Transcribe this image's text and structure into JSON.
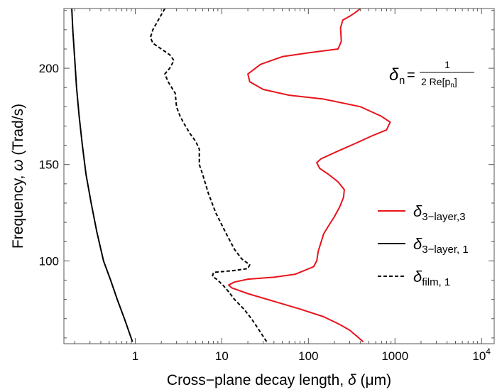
{
  "chart_data": {
    "type": "line",
    "xscale": "log",
    "xlim": [
      0.15,
      14000
    ],
    "ylim": [
      57,
      231
    ],
    "xlabel": {
      "prefix": "Cross−plane decay length, ",
      "sym": "δ",
      "suffix": " (μm)"
    },
    "ylabel": {
      "prefix": "Frequency, ",
      "sym": "ω",
      "suffix": " (Trad/s)"
    },
    "x_ticks": [
      {
        "value": 1,
        "label": "1"
      },
      {
        "value": 10,
        "label": "10"
      },
      {
        "value": 100,
        "label": "100"
      },
      {
        "value": 1000,
        "label": "1000"
      },
      {
        "value": 10000,
        "label": "10",
        "sup": "4"
      }
    ],
    "y_ticks": [
      {
        "value": 100,
        "label": "100"
      },
      {
        "value": 150,
        "label": "150"
      },
      {
        "value": 200,
        "label": "200"
      }
    ],
    "grid": false,
    "legend_position": "right",
    "formula": {
      "lhs": "δ",
      "lhs_sub": "n",
      "equals": "=",
      "numerator": "1",
      "denominator": "2 Re[p",
      "denominator_sub": "n",
      "denominator_end": "]"
    },
    "series": [
      {
        "name": "3−layer,3",
        "legend_symbol": "δ",
        "color": "#e8141b",
        "dash": "solid",
        "points": [
          [
            400,
            231
          ],
          [
            350,
            229
          ],
          [
            300,
            227
          ],
          [
            250,
            225
          ],
          [
            235,
            221
          ],
          [
            240,
            214
          ],
          [
            220,
            210
          ],
          [
            100,
            208
          ],
          [
            50,
            206
          ],
          [
            28,
            202
          ],
          [
            20,
            197
          ],
          [
            21,
            193
          ],
          [
            30,
            189
          ],
          [
            60,
            186
          ],
          [
            150,
            184
          ],
          [
            400,
            180
          ],
          [
            700,
            175
          ],
          [
            880,
            172
          ],
          [
            800,
            168
          ],
          [
            550,
            165
          ],
          [
            350,
            161
          ],
          [
            220,
            157
          ],
          [
            140,
            153
          ],
          [
            125,
            151
          ],
          [
            135,
            148
          ],
          [
            170,
            145
          ],
          [
            220,
            141
          ],
          [
            260,
            137
          ],
          [
            255,
            133
          ],
          [
            230,
            128
          ],
          [
            200,
            123
          ],
          [
            170,
            118
          ],
          [
            150,
            114
          ],
          [
            130,
            105
          ],
          [
            125,
            100
          ],
          [
            115,
            97
          ],
          [
            90,
            95
          ],
          [
            70,
            93
          ],
          [
            40,
            91.5
          ],
          [
            20,
            90.5
          ],
          [
            14,
            89
          ],
          [
            12,
            87.5
          ],
          [
            13,
            86
          ],
          [
            20,
            83
          ],
          [
            40,
            79
          ],
          [
            80,
            75
          ],
          [
            150,
            71
          ],
          [
            230,
            67
          ],
          [
            300,
            64
          ],
          [
            360,
            61
          ],
          [
            430,
            58
          ]
        ]
      },
      {
        "name": "3−layer, 1",
        "legend_symbol": "δ",
        "color": "#000000",
        "dash": "solid",
        "points": [
          [
            0.185,
            231
          ],
          [
            0.19,
            220
          ],
          [
            0.2,
            205
          ],
          [
            0.21,
            190
          ],
          [
            0.225,
            175
          ],
          [
            0.245,
            160
          ],
          [
            0.27,
            145
          ],
          [
            0.31,
            130
          ],
          [
            0.36,
            115
          ],
          [
            0.43,
            100
          ],
          [
            0.52,
            90
          ],
          [
            0.62,
            80
          ],
          [
            0.75,
            70
          ],
          [
            0.93,
            58
          ]
        ]
      },
      {
        "name": "film, 1",
        "legend_symbol": "δ",
        "color": "#000000",
        "dash": "dashed",
        "points": [
          [
            2.2,
            231
          ],
          [
            1.9,
            226
          ],
          [
            1.6,
            220
          ],
          [
            1.5,
            216
          ],
          [
            1.6,
            213
          ],
          [
            2.0,
            210
          ],
          [
            2.5,
            207
          ],
          [
            2.8,
            204
          ],
          [
            2.5,
            200
          ],
          [
            2.2,
            197
          ],
          [
            2.4,
            193
          ],
          [
            2.9,
            187
          ],
          [
            3.0,
            180
          ],
          [
            3.3,
            175
          ],
          [
            3.8,
            170
          ],
          [
            4.3,
            166
          ],
          [
            5.0,
            162
          ],
          [
            5.5,
            158
          ],
          [
            5.5,
            152
          ],
          [
            5.5,
            150
          ],
          [
            6.0,
            145
          ],
          [
            7.0,
            135
          ],
          [
            8.5,
            125
          ],
          [
            11,
            115
          ],
          [
            14,
            106
          ],
          [
            17,
            101
          ],
          [
            21,
            98
          ],
          [
            20,
            96
          ],
          [
            14,
            95
          ],
          [
            8,
            94
          ],
          [
            7.8,
            92
          ],
          [
            9,
            90
          ],
          [
            10.5,
            87
          ],
          [
            12,
            84
          ],
          [
            14,
            80
          ],
          [
            18,
            75
          ],
          [
            22,
            70
          ],
          [
            27,
            64
          ],
          [
            33,
            58
          ]
        ]
      }
    ]
  }
}
